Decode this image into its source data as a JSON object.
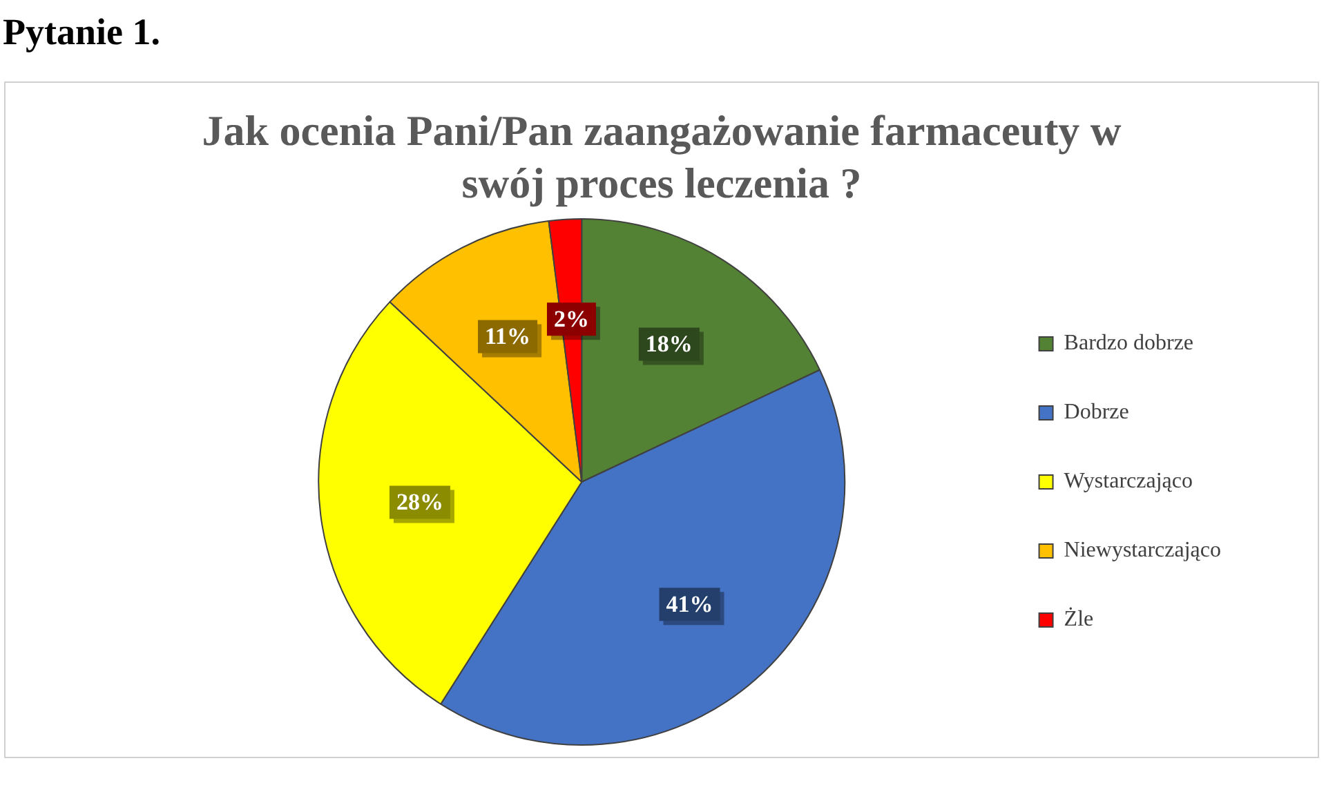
{
  "chart_data": {
    "type": "pie",
    "title": "Jak ocenia Pani/Pan zaangażowanie farmaceuty w swój proces leczenia ?",
    "annotations": [
      "Pytanie 1."
    ],
    "categories": [
      "Bardzo dobrze",
      "Dobrze",
      "Wystarczająco",
      "Niewystarczająco",
      "Żle"
    ],
    "values": [
      18,
      41,
      28,
      11,
      2
    ],
    "colors": [
      "#548235",
      "#4472c4",
      "#ffff00",
      "#ffc000",
      "#ff0000"
    ],
    "value_labels": [
      "18%",
      "41%",
      "28%",
      "11%",
      "2%"
    ],
    "legend": "right"
  }
}
